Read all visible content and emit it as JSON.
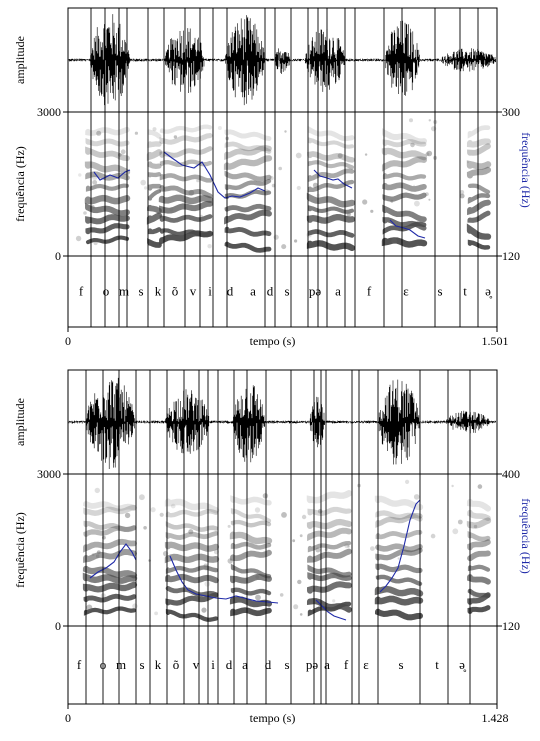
{
  "figure": {
    "labels": {
      "amplitude": "amplitude",
      "frequency": "frequência (Hz)",
      "frequency_right": "frequência (Hz)",
      "time": "tempo  (s)"
    },
    "colors": {
      "pitch": "#1f2aa8",
      "grid": "#000000",
      "spectrogram": "#2b2b2b",
      "background": "#ffffff"
    },
    "panels": [
      {
        "time_start": "0",
        "time_end": "1.501",
        "freq_left_top": "3000",
        "freq_left_bottom": "0",
        "freq_right_top": "300",
        "freq_right_bottom": "120",
        "segments": [
          "f",
          "o",
          "m",
          "s",
          "k",
          "õ",
          "v",
          "i",
          "d",
          "a",
          "d",
          "s",
          "pə",
          "a",
          "f",
          "ɛ",
          "s",
          "t",
          "ə̥"
        ]
      },
      {
        "time_start": "0",
        "time_end": "1.428",
        "freq_left_top": "3000",
        "freq_left_bottom": "0",
        "freq_right_top": "400",
        "freq_right_bottom": "120",
        "segments": [
          "f",
          "o",
          "m",
          "s",
          "k",
          "õ",
          "v",
          "i",
          "d",
          "a",
          "d",
          "s",
          "pə",
          "a",
          "f",
          "ɛ",
          "s",
          "t",
          "ə̥"
        ]
      }
    ]
  }
}
